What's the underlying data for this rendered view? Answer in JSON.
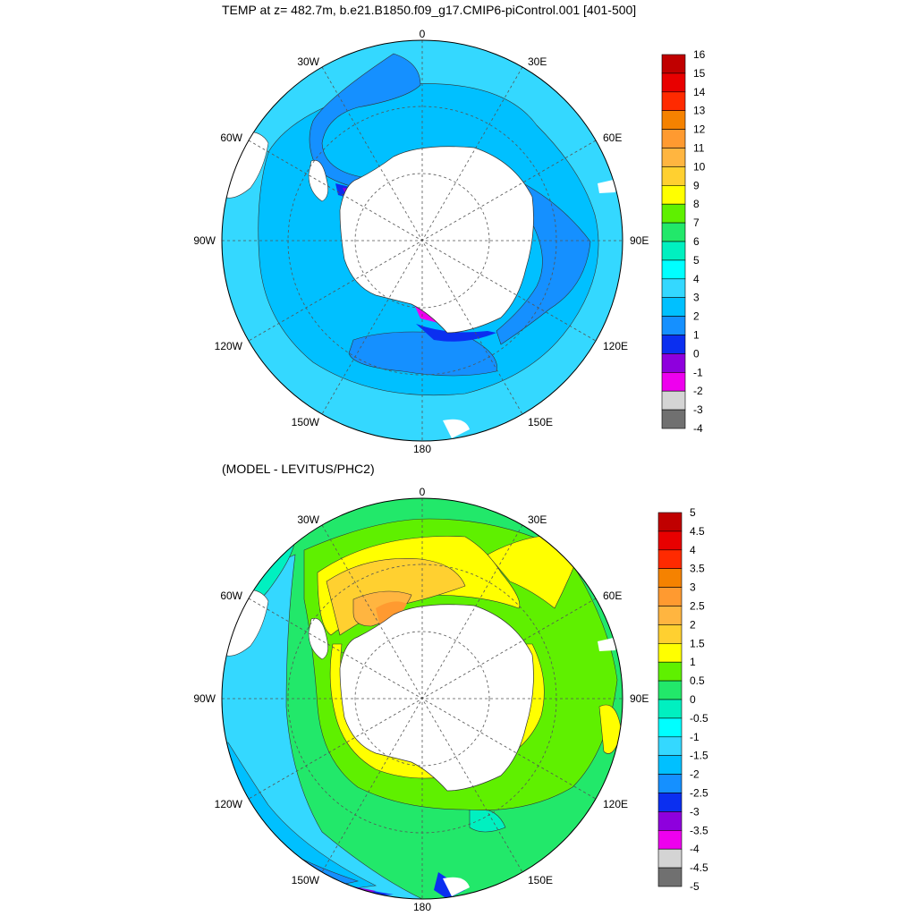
{
  "top_panel": {
    "title": "TEMP at z= 482.7m, b.e21.B1850.f09_g17.CMIP6-piControl.001 [401-500]",
    "longitude_labels": {
      "lon0": "0",
      "lon30e": "30E",
      "lon60e": "60E",
      "lon90e": "90E",
      "lon120e": "120E",
      "lon150e": "150E",
      "lon180": "180",
      "lon150w": "150W",
      "lon120w": "120W",
      "lon90w": "90W",
      "lon60w": "60W",
      "lon30w": "30W"
    },
    "colorbar": {
      "labels": [
        "16",
        "15",
        "14",
        "13",
        "12",
        "11",
        "10",
        "9",
        "8",
        "7",
        "6",
        "5",
        "4",
        "3",
        "2",
        "1",
        "0",
        "-1",
        "-2",
        "-3",
        "-4"
      ],
      "colors": [
        "#c00000",
        "#e80000",
        "#ff2a00",
        "#f58200",
        "#ff9a30",
        "#ffb540",
        "#ffd030",
        "#ffff00",
        "#5ff000",
        "#22e86a",
        "#00f0c0",
        "#00ffff",
        "#34d8ff",
        "#00c0ff",
        "#1590ff",
        "#0b2ff0",
        "#8e00dd",
        "#ee00ee",
        "#d4d4d4",
        "#707070"
      ]
    }
  },
  "bottom_panel": {
    "title": "(MODEL - LEVITUS/PHC2)",
    "longitude_labels": {
      "lon0": "0",
      "lon30e": "30E",
      "lon60e": "60E",
      "lon90e": "90E",
      "lon120e": "120E",
      "lon150e": "150E",
      "lon180": "180",
      "lon150w": "150W",
      "lon120w": "120W",
      "lon90w": "90W",
      "lon60w": "60W",
      "lon30w": "30W"
    },
    "colorbar": {
      "labels": [
        "5",
        "4.5",
        "4",
        "3.5",
        "3",
        "2.5",
        "2",
        "1.5",
        "1",
        "0.5",
        "0",
        "-0.5",
        "-1",
        "-1.5",
        "-2",
        "-2.5",
        "-3",
        "-3.5",
        "-4",
        "-4.5",
        "-5"
      ],
      "colors": [
        "#c00000",
        "#e80000",
        "#ff2a00",
        "#f58200",
        "#ff9a30",
        "#ffb540",
        "#ffd030",
        "#ffff00",
        "#5ff000",
        "#22e86a",
        "#00f0c0",
        "#00ffff",
        "#34d8ff",
        "#00c0ff",
        "#1590ff",
        "#0b2ff0",
        "#8e00dd",
        "#ee00ee",
        "#d4d4d4",
        "#707070"
      ]
    }
  }
}
